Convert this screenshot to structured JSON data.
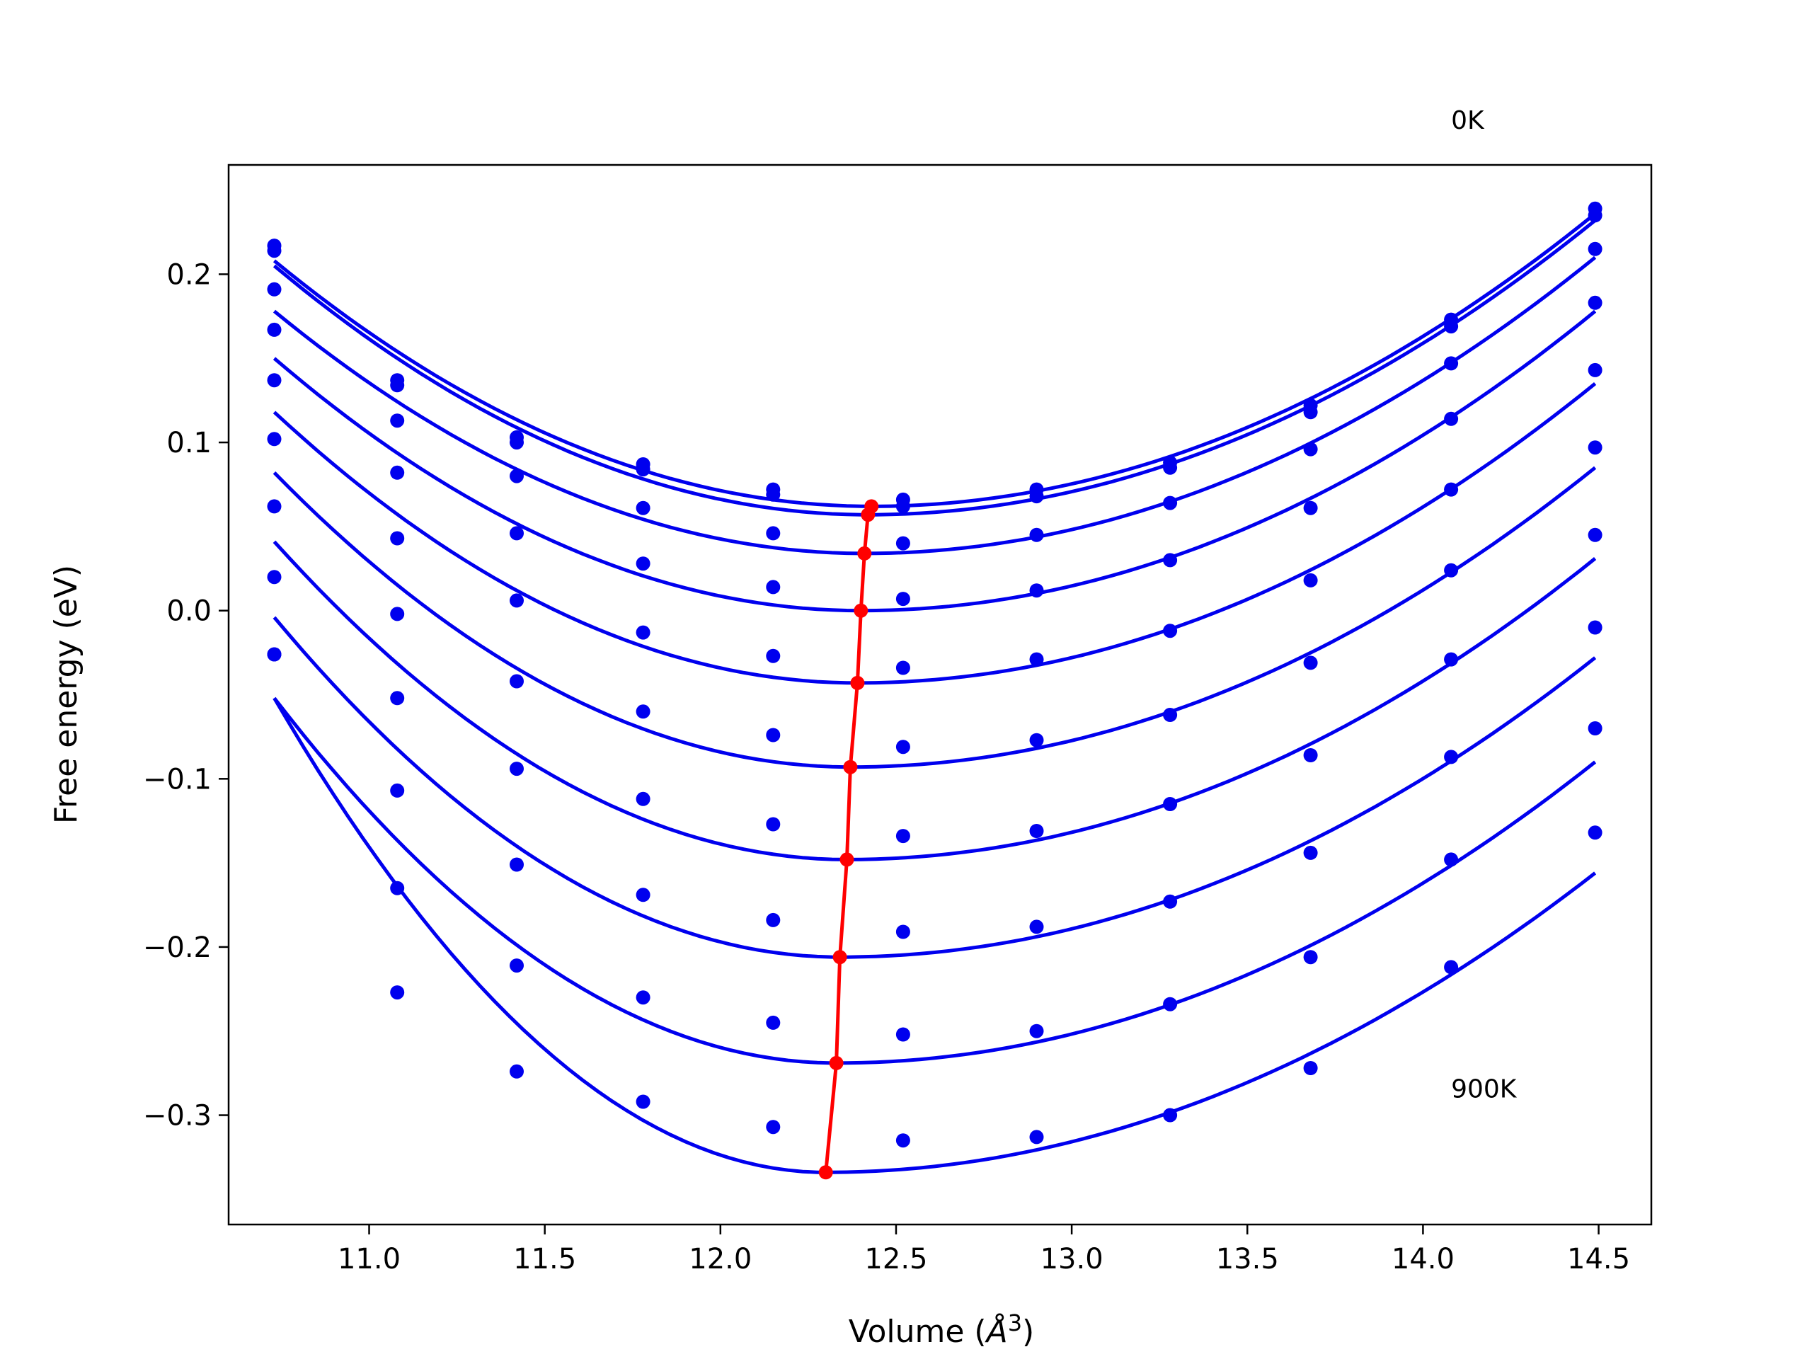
{
  "chart_data": {
    "type": "line",
    "xlabel": "Volume",
    "xlabel_unit": "Å",
    "xlabel_unit_exp": "3",
    "ylabel": "Free energy (eV)",
    "xlim": [
      10.6,
      14.65
    ],
    "ylim": [
      -0.365,
      0.265
    ],
    "grid": false,
    "x_ticks": [
      11.0,
      11.5,
      12.0,
      12.5,
      13.0,
      13.5,
      14.0,
      14.5
    ],
    "x_tick_labels": [
      "11.0",
      "11.5",
      "12.0",
      "12.5",
      "13.0",
      "13.5",
      "14.0",
      "14.5"
    ],
    "y_ticks": [
      0.2,
      0.1,
      0.0,
      -0.1,
      -0.2,
      -0.3
    ],
    "y_tick_labels": [
      "0.2",
      "0.1",
      "0.0",
      "−0.1",
      "−0.2",
      "−0.3"
    ],
    "annotations": [
      {
        "text": "0K",
        "x": 14.08,
        "y": 0.292
      },
      {
        "text": "900K",
        "x": 14.08,
        "y": -0.284
      }
    ],
    "volumes": [
      10.73,
      11.08,
      11.42,
      11.78,
      12.15,
      12.52,
      12.9,
      13.28,
      13.68,
      14.08,
      14.49
    ],
    "series": [
      {
        "color": "#0000ee",
        "min_volume": 12.43,
        "min_energy": 0.062,
        "points": [
          0.217,
          0.137,
          0.103,
          0.087,
          0.072,
          0.066,
          0.072,
          0.088,
          0.122,
          0.173,
          0.239
        ]
      },
      {
        "color": "#0000ee",
        "min_volume": 12.42,
        "min_energy": 0.057,
        "points": [
          0.214,
          0.134,
          0.1,
          0.084,
          0.069,
          0.062,
          0.068,
          0.085,
          0.118,
          0.169,
          0.235
        ]
      },
      {
        "color": "#0000ee",
        "min_volume": 12.41,
        "min_energy": 0.034,
        "points": [
          0.191,
          0.113,
          0.08,
          0.061,
          0.046,
          0.04,
          0.045,
          0.064,
          0.096,
          0.147,
          0.215
        ]
      },
      {
        "color": "#0000ee",
        "min_volume": 12.4,
        "min_energy": 0.0,
        "points": [
          0.167,
          0.082,
          0.046,
          0.028,
          0.014,
          0.007,
          0.012,
          0.03,
          0.061,
          0.114,
          0.183
        ]
      },
      {
        "color": "#0000ee",
        "min_volume": 12.39,
        "min_energy": -0.043,
        "points": [
          0.137,
          0.043,
          0.006,
          -0.013,
          -0.027,
          -0.034,
          -0.029,
          -0.012,
          0.018,
          0.072,
          0.143
        ]
      },
      {
        "color": "#0000ee",
        "min_volume": 12.37,
        "min_energy": -0.093,
        "points": [
          0.102,
          -0.002,
          -0.042,
          -0.06,
          -0.074,
          -0.081,
          -0.077,
          -0.062,
          -0.031,
          0.024,
          0.097
        ]
      },
      {
        "color": "#0000ee",
        "min_volume": 12.36,
        "min_energy": -0.148,
        "points": [
          0.062,
          -0.052,
          -0.094,
          -0.112,
          -0.127,
          -0.134,
          -0.131,
          -0.115,
          -0.086,
          -0.029,
          0.045
        ]
      },
      {
        "color": "#0000ee",
        "min_volume": 12.34,
        "min_energy": -0.206,
        "points": [
          0.02,
          -0.107,
          -0.151,
          -0.169,
          -0.184,
          -0.191,
          -0.188,
          -0.173,
          -0.144,
          -0.087,
          -0.01
        ]
      },
      {
        "color": "#0000ee",
        "min_volume": 12.33,
        "min_energy": -0.269,
        "points": [
          -0.026,
          -0.165,
          -0.211,
          -0.23,
          -0.245,
          -0.252,
          -0.25,
          -0.234,
          -0.206,
          -0.148,
          -0.07
        ]
      },
      {
        "color": "#0000ee",
        "min_volume": 12.3,
        "min_energy": -0.334,
        "points": [
          -0.026,
          -0.227,
          -0.274,
          -0.292,
          -0.307,
          -0.315,
          -0.313,
          -0.3,
          -0.272,
          -0.212,
          -0.132
        ]
      }
    ],
    "fits": [
      {
        "left": 0.208,
        "right": 0.236
      },
      {
        "left": 0.205,
        "right": 0.232
      },
      {
        "left": 0.178,
        "right": 0.21
      },
      {
        "left": 0.15,
        "right": 0.178
      },
      {
        "left": 0.118,
        "right": 0.135
      },
      {
        "left": 0.082,
        "right": 0.085
      },
      {
        "left": 0.041,
        "right": 0.031
      },
      {
        "left": -0.004,
        "right": -0.028
      },
      {
        "left": -0.052,
        "right": -0.09
      },
      {
        "left": -0.052,
        "right": -0.156
      }
    ],
    "min_path": {
      "color": "#ff0000",
      "x": [
        12.43,
        12.42,
        12.41,
        12.4,
        12.39,
        12.37,
        12.36,
        12.34,
        12.33,
        12.3
      ],
      "y": [
        0.062,
        0.057,
        0.034,
        0.0,
        -0.043,
        -0.093,
        -0.148,
        -0.206,
        -0.269,
        -0.334
      ]
    }
  }
}
